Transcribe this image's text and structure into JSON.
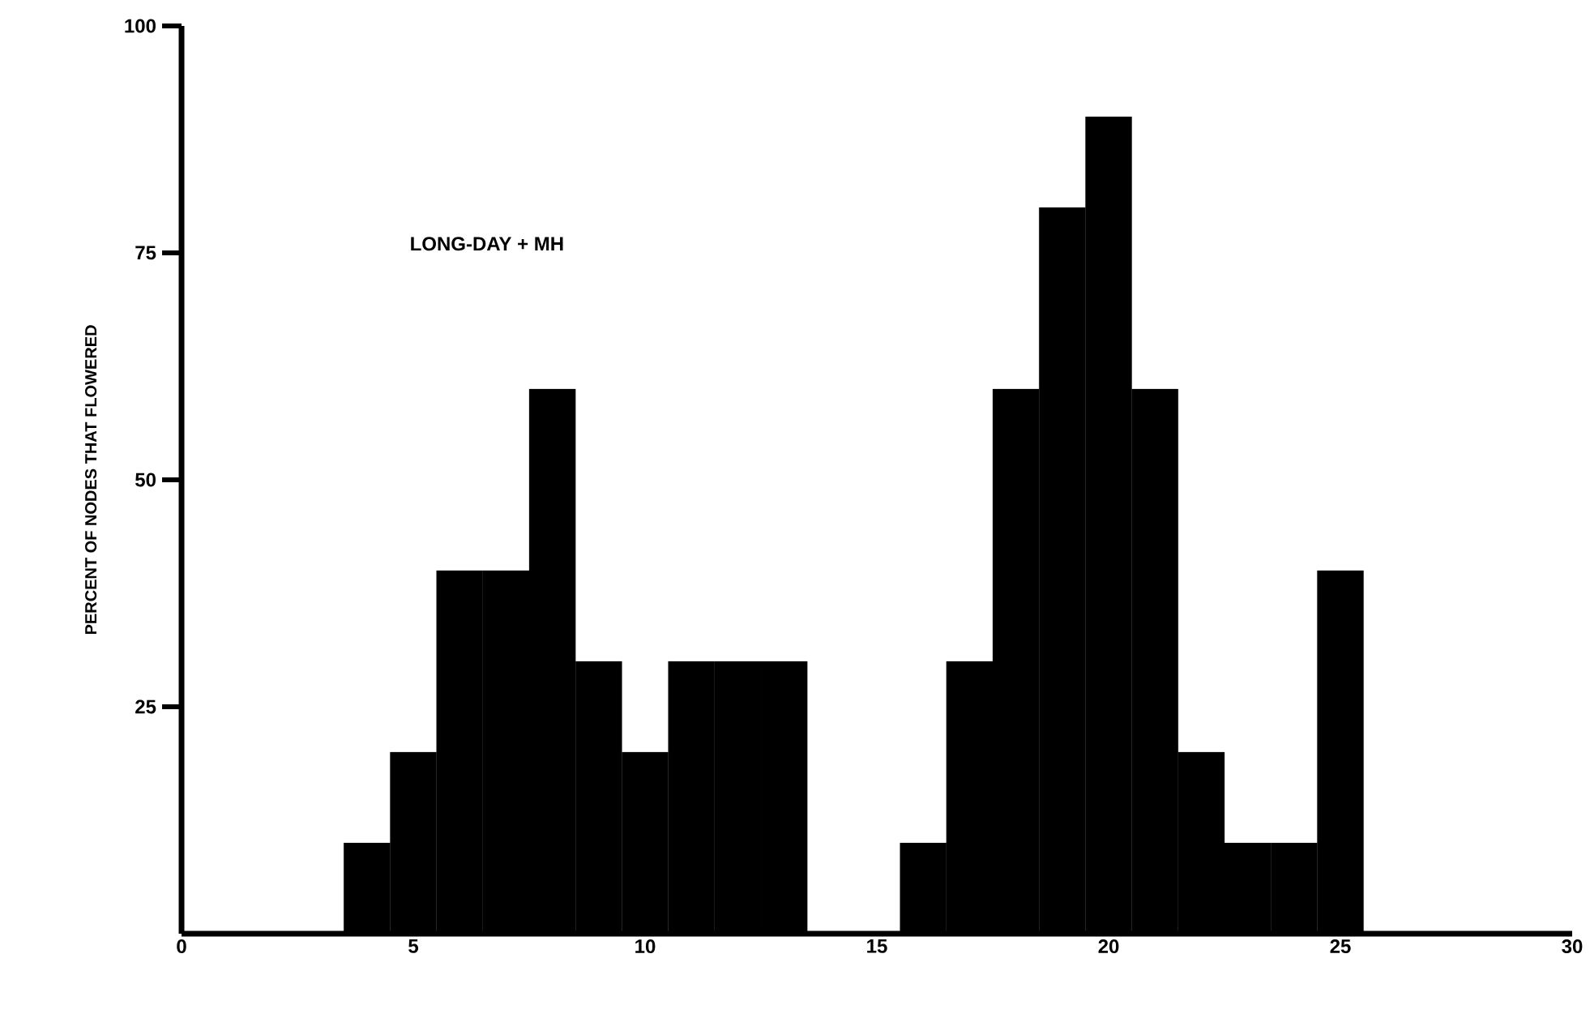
{
  "chart_data": {
    "type": "histogram",
    "ylabel": "PERCENT OF NODES THAT FLOWERED",
    "annotations": [
      "LONG-DAY + MH"
    ],
    "bins": [
      3.5,
      4.5,
      5.5,
      6.5,
      7.5,
      8.5,
      9.5,
      10.5,
      11.5,
      12.5,
      13.5,
      14.5,
      15.5,
      16.5,
      17.5,
      18.5,
      19.5,
      20.5,
      21.5,
      22.5,
      23.5,
      24.5,
      25.5
    ],
    "values": [
      10,
      20,
      40,
      40,
      60,
      30,
      20,
      30,
      30,
      30,
      0,
      0,
      10,
      30,
      60,
      80,
      90,
      60,
      20,
      10,
      10,
      40
    ],
    "color": "#000000",
    "xlim": [
      0,
      30
    ],
    "ylim": [
      0,
      100
    ],
    "xticks": [
      0,
      5,
      10,
      15,
      20,
      25,
      30
    ],
    "yticks": [
      25,
      50,
      75,
      100
    ],
    "grid": false
  }
}
